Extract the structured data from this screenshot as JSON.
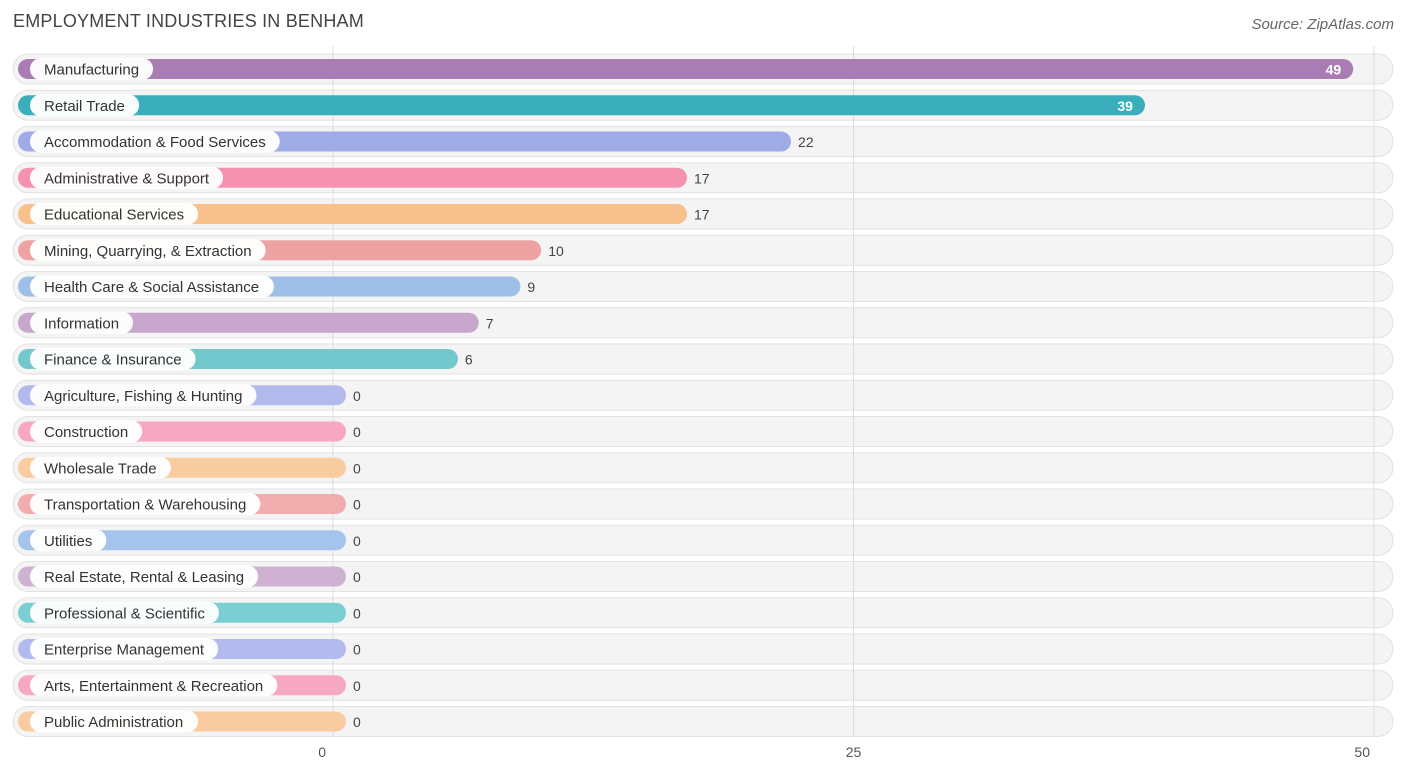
{
  "chart_data": {
    "type": "bar",
    "orientation": "horizontal",
    "title": "EMPLOYMENT INDUSTRIES IN BENHAM",
    "source": "Source: ZipAtlas.com",
    "xlabel": "",
    "ylabel": "",
    "xlim": [
      0,
      50
    ],
    "ticks": [
      0,
      25,
      50
    ],
    "categories": [
      "Manufacturing",
      "Retail Trade",
      "Accommodation & Food Services",
      "Administrative & Support",
      "Educational Services",
      "Mining, Quarrying, & Extraction",
      "Health Care & Social Assistance",
      "Information",
      "Finance & Insurance",
      "Agriculture, Fishing & Hunting",
      "Construction",
      "Wholesale Trade",
      "Transportation & Warehousing",
      "Utilities",
      "Real Estate, Rental & Leasing",
      "Professional & Scientific",
      "Enterprise Management",
      "Arts, Entertainment & Recreation",
      "Public Administration"
    ],
    "values": [
      49,
      39,
      22,
      17,
      17,
      10,
      9,
      7,
      6,
      0,
      0,
      0,
      0,
      0,
      0,
      0,
      0,
      0,
      0
    ],
    "colors": [
      "#a97cb4",
      "#3aaebb",
      "#9eabe6",
      "#f592b0",
      "#f8c08a",
      "#eea3a3",
      "#9ebfe8",
      "#c8a7cd",
      "#72c8cc",
      "#b2b9ec",
      "#f7a7c2",
      "#f9cc9f",
      "#f1adad",
      "#a5c4ec",
      "#cfb1d2",
      "#7bcfd3",
      "#b3bbee",
      "#f6a8c3",
      "#f9cba0"
    ],
    "grid": true
  }
}
